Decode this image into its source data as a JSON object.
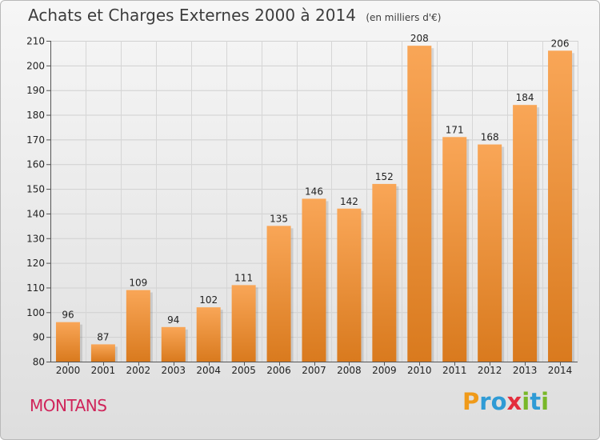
{
  "title": "Achats et Charges Externes 2000 à 2014",
  "subtitle": "(en milliers d'€)",
  "town": "MONTANS",
  "logo": {
    "letters": [
      "P",
      "r",
      "o",
      "x",
      "i",
      "t",
      "i"
    ],
    "colors": [
      "#f09a19",
      "#2f9bd5",
      "#2f9bd5",
      "#e32d3c",
      "#79b829",
      "#2f9bd5",
      "#79b829"
    ]
  },
  "colors": {
    "bar_light": "#f9a657",
    "bar_dark": "#d97a1e",
    "title": "#3d3d3d",
    "town": "#d0245a"
  },
  "chart_data": {
    "type": "bar",
    "categories": [
      "2000",
      "2001",
      "2002",
      "2003",
      "2004",
      "2005",
      "2006",
      "2007",
      "2008",
      "2009",
      "2010",
      "2011",
      "2012",
      "2013",
      "2014"
    ],
    "values": [
      96,
      87,
      109,
      94,
      102,
      111,
      135,
      146,
      142,
      152,
      208,
      171,
      168,
      184,
      206
    ],
    "ylim": [
      80,
      210
    ],
    "yticks": [
      80,
      90,
      100,
      110,
      120,
      130,
      140,
      150,
      160,
      170,
      180,
      190,
      200,
      210
    ],
    "grid": true,
    "data_labels": true
  }
}
